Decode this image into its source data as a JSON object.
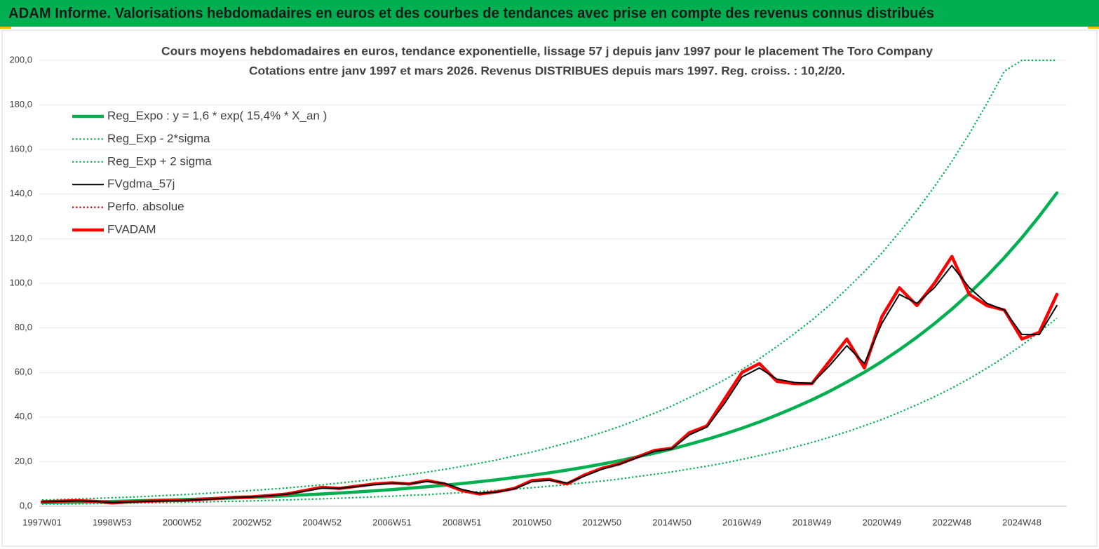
{
  "header": {
    "title": "ADAM Informe. Valorisations hebdomadaires en euros et des courbes de tendances avec prise en compte des revenus connus distribués"
  },
  "chart_data": {
    "type": "line",
    "title": "Cours moyens hebdomadaires en euros, tendance exponentielle, lissage 57 j depuis janv 1997 pour le placement The Toro Company",
    "subtitle": "Cotations entre janv 1997 et mars 2026. Revenus DISTRIBUES depuis mars 1997. Reg. croiss. : 10,2/20.",
    "categories": [
      "1997W01",
      null,
      null,
      null,
      "1998W53",
      null,
      null,
      null,
      "2000W52",
      null,
      null,
      null,
      "2002W52",
      null,
      null,
      null,
      "2004W52",
      null,
      null,
      null,
      "2006W51",
      null,
      null,
      null,
      "2008W51",
      null,
      null,
      null,
      "2010W50",
      null,
      null,
      null,
      "2012W50",
      null,
      null,
      null,
      "2014W50",
      null,
      null,
      null,
      "2016W49",
      null,
      null,
      null,
      "2018W49",
      null,
      null,
      null,
      "2020W49",
      null,
      null,
      null,
      "2022W48",
      null,
      null,
      null,
      "2024W48",
      null,
      null
    ],
    "ylim": [
      0,
      200
    ],
    "yticks": [
      {
        "value": 0,
        "label": "0,0"
      },
      {
        "value": 20,
        "label": "20,0"
      },
      {
        "value": 40,
        "label": "40,0"
      },
      {
        "value": 60,
        "label": "60,0"
      },
      {
        "value": 80,
        "label": "80,0"
      },
      {
        "value": 100,
        "label": "100,0"
      },
      {
        "value": 120,
        "label": "120,0"
      },
      {
        "value": 140,
        "label": "140,0"
      },
      {
        "value": 160,
        "label": "160,0"
      },
      {
        "value": 180,
        "label": "180,0"
      },
      {
        "value": 200,
        "label": "200,0"
      }
    ],
    "grid": true,
    "legend": "top-left",
    "series": [
      {
        "name": "Reg_Expo : y = 1,6 * exp( 15,4% *  X_an )",
        "color": "#00b050",
        "line_style": "thick",
        "values": [
          1.6,
          1.73,
          1.87,
          2.02,
          2.18,
          2.35,
          2.54,
          2.74,
          2.96,
          3.2,
          3.46,
          3.74,
          4.04,
          4.36,
          4.71,
          5.09,
          5.5,
          5.94,
          6.42,
          6.93,
          7.49,
          8.09,
          8.74,
          9.44,
          10.2,
          11.0,
          11.9,
          12.9,
          13.9,
          15.0,
          16.2,
          17.5,
          18.9,
          20.4,
          22.1,
          23.8,
          25.7,
          27.8,
          30.0,
          32.4,
          35.0,
          37.8,
          40.9,
          44.2,
          47.7,
          51.5,
          55.7,
          60.1,
          64.9,
          70.2,
          75.8,
          81.9,
          88.4,
          95.5,
          103.2,
          111.5,
          120.4,
          130.1,
          140.5
        ]
      },
      {
        "name": "Reg_Exp - 2*sigma",
        "color": "#00b050",
        "line_style": "dotted",
        "values": [
          1.0,
          1.0,
          1.1,
          1.2,
          1.3,
          1.4,
          1.5,
          1.6,
          1.8,
          1.9,
          2.1,
          2.2,
          2.4,
          2.6,
          2.8,
          3.1,
          3.3,
          3.6,
          3.9,
          4.2,
          4.5,
          4.9,
          5.2,
          5.7,
          6.1,
          6.6,
          7.1,
          7.7,
          8.3,
          9.0,
          9.7,
          10.5,
          11.3,
          12.2,
          13.3,
          14.3,
          15.4,
          16.7,
          18.0,
          19.4,
          21.0,
          22.7,
          24.5,
          26.5,
          28.6,
          30.9,
          33.4,
          36.1,
          38.9,
          42.1,
          45.5,
          49.1,
          53.0,
          57.3,
          61.9,
          66.9,
          72.2,
          78.1,
          84.3
        ]
      },
      {
        "name": "Reg_Exp + 2 sigma",
        "color": "#00b050",
        "line_style": "dotted",
        "values": [
          2.8,
          3.0,
          3.3,
          3.5,
          3.8,
          4.1,
          4.4,
          4.8,
          5.2,
          5.6,
          6.1,
          6.5,
          7.1,
          7.6,
          8.2,
          8.9,
          9.6,
          10.4,
          11.2,
          12.1,
          13.1,
          14.2,
          15.3,
          16.5,
          17.9,
          19.3,
          20.8,
          22.6,
          24.3,
          26.3,
          28.4,
          30.6,
          33.1,
          35.7,
          38.7,
          41.7,
          45.0,
          48.7,
          52.5,
          56.7,
          61.3,
          66.2,
          71.6,
          77.4,
          83.5,
          90.1,
          97.5,
          105.2,
          113.6,
          122.9,
          132.7,
          143.3,
          154.7,
          167.1,
          180.6,
          195.1,
          200,
          200,
          200
        ]
      },
      {
        "name": "FVgdma_57j",
        "color": "#000000",
        "line_style": "solid",
        "values": [
          2,
          2.2,
          2.4,
          2.2,
          1.7,
          1.9,
          2.2,
          2.4,
          2.6,
          2.9,
          3.4,
          3.9,
          4.2,
          4.7,
          5.4,
          6.7,
          8.1,
          8.1,
          8.8,
          9.7,
          10.3,
          10.1,
          11.1,
          10.3,
          7.5,
          5.8,
          6.4,
          7.8,
          11,
          11.7,
          10.4,
          13.5,
          16.6,
          18.8,
          21.8,
          24.6,
          25.8,
          32,
          35.5,
          46,
          58,
          62,
          57,
          55.5,
          55,
          63,
          72,
          64,
          82,
          95,
          91,
          98,
          108,
          98,
          91,
          88,
          77,
          77,
          90
        ]
      },
      {
        "name": "Perfo. absolue",
        "color": "#c00000",
        "line_style": "dotted",
        "values": [
          2,
          2.3,
          2.5,
          2.2,
          1.5,
          2,
          2.3,
          2.5,
          2.6,
          3,
          3.5,
          4,
          4.2,
          4.8,
          5.5,
          7,
          8.5,
          8,
          9,
          10,
          10.5,
          10,
          11.5,
          10,
          7,
          5.5,
          6.5,
          8,
          11.5,
          12,
          10,
          14,
          17,
          19,
          22,
          25,
          26,
          33,
          36,
          48,
          60,
          64,
          56,
          55,
          55,
          65,
          75,
          62,
          85,
          98,
          90,
          100,
          112,
          95,
          90,
          88,
          75,
          78,
          95
        ]
      },
      {
        "name": "FVADAM",
        "color": "#ff0000",
        "line_style": "thick",
        "values": [
          2,
          2.3,
          2.5,
          2.2,
          1.5,
          2,
          2.3,
          2.5,
          2.6,
          3,
          3.5,
          4,
          4.2,
          4.8,
          5.5,
          7,
          8.5,
          8,
          9,
          10,
          10.5,
          10,
          11.5,
          10,
          7,
          5.5,
          6.5,
          8,
          11.5,
          12,
          10,
          14,
          17,
          19,
          22,
          25,
          26,
          33,
          36,
          48,
          60,
          64,
          56,
          55,
          55,
          65,
          75,
          62,
          85,
          98,
          90,
          100,
          112,
          95,
          90,
          88,
          75,
          78,
          95
        ]
      }
    ]
  }
}
